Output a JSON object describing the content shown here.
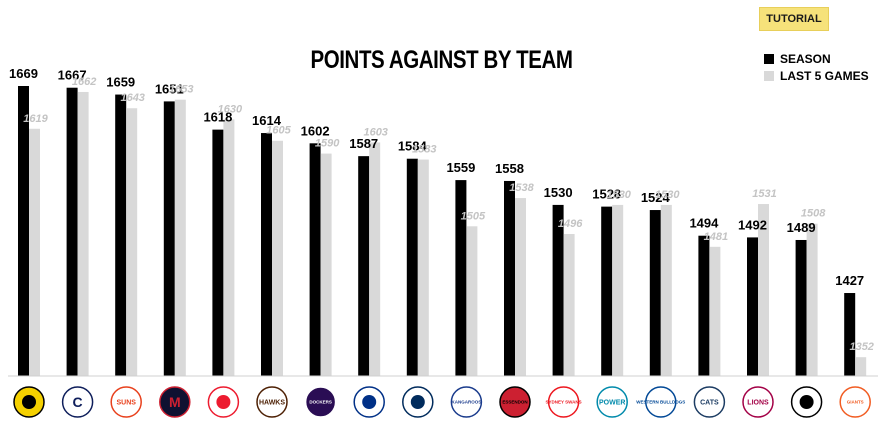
{
  "tutorial_label": "TUTORIAL",
  "chart_data": {
    "type": "bar",
    "title": "POINTS AGAINST BY TEAM",
    "xlabel": "",
    "ylabel": "",
    "ylim": [
      1330,
      1690
    ],
    "grid": false,
    "legend_position": "top-right",
    "categories": [
      "Richmond",
      "Carlton",
      "Gold Coast Suns",
      "Melbourne",
      "St Kilda",
      "Hawthorn",
      "Fremantle",
      "West Coast",
      "Adelaide",
      "North Melbourne",
      "Essendon",
      "Sydney",
      "Port Adelaide",
      "Western Bulldogs",
      "Geelong",
      "Brisbane Lions",
      "Collingwood",
      "GWS Giants"
    ],
    "series": [
      {
        "name": "SEASON",
        "color": "#000000",
        "values": [
          1669,
          1667,
          1659,
          1651,
          1618,
          1614,
          1602,
          1587,
          1584,
          1559,
          1558,
          1530,
          1528,
          1524,
          1494,
          1492,
          1489,
          1427
        ]
      },
      {
        "name": "LAST 5 GAMES",
        "color": "#d9d9d9",
        "values": [
          1619,
          1662,
          1643,
          1653,
          1630,
          1605,
          1590,
          1603,
          1583,
          1505,
          1538,
          1496,
          1530,
          1530,
          1481,
          1531,
          1508,
          1352
        ]
      }
    ]
  },
  "team_logos": [
    {
      "icon": "richmond-logo",
      "text": "",
      "bg": "#f5d100",
      "fg": "#000000"
    },
    {
      "icon": "carlton-logo",
      "text": "C",
      "bg": "#ffffff",
      "fg": "#0e1e5b"
    },
    {
      "icon": "gold-coast-suns-logo",
      "text": "SUNS",
      "bg": "#ffffff",
      "fg": "#e8401c"
    },
    {
      "icon": "melbourne-logo",
      "text": "M",
      "bg": "#0f1131",
      "fg": "#cc2031"
    },
    {
      "icon": "st-kilda-logo",
      "text": "",
      "bg": "#ffffff",
      "fg": "#ed1b2f"
    },
    {
      "icon": "hawthorn-logo",
      "text": "HAWKS",
      "bg": "#ffffff",
      "fg": "#4d2004"
    },
    {
      "icon": "fremantle-logo",
      "text": "DOCKERS",
      "bg": "#2a0d54",
      "fg": "#ffffff"
    },
    {
      "icon": "west-coast-logo",
      "text": "",
      "bg": "#ffffff",
      "fg": "#003087"
    },
    {
      "icon": "adelaide-logo",
      "text": "",
      "bg": "#ffffff",
      "fg": "#002b5c"
    },
    {
      "icon": "north-melbourne-logo",
      "text": "KANGAROOS",
      "bg": "#ffffff",
      "fg": "#1a3b8c"
    },
    {
      "icon": "essendon-logo",
      "text": "ESSENDON",
      "bg": "#cc2031",
      "fg": "#000000"
    },
    {
      "icon": "sydney-logo",
      "text": "SYDNEY SWANS",
      "bg": "#ffffff",
      "fg": "#ed171f"
    },
    {
      "icon": "port-adelaide-logo",
      "text": "POWER",
      "bg": "#ffffff",
      "fg": "#008aab"
    },
    {
      "icon": "western-bulldogs-logo",
      "text": "WESTERN BULLDOGS",
      "bg": "#ffffff",
      "fg": "#014896"
    },
    {
      "icon": "geelong-logo",
      "text": "CATS",
      "bg": "#ffffff",
      "fg": "#1c3c63"
    },
    {
      "icon": "brisbane-logo",
      "text": "LIONS",
      "bg": "#ffffff",
      "fg": "#a30046"
    },
    {
      "icon": "collingwood-logo",
      "text": "",
      "bg": "#ffffff",
      "fg": "#000000"
    },
    {
      "icon": "gws-logo",
      "text": "GIANTS",
      "bg": "#ffffff",
      "fg": "#f15c22"
    }
  ]
}
